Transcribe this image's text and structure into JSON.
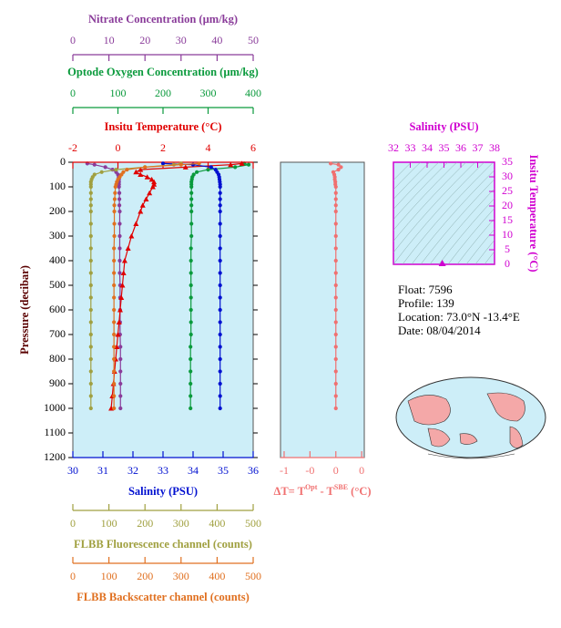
{
  "chart_data": [
    {
      "type": "profile",
      "y_label": "Pressure (decibar)",
      "ylim": [
        0,
        1200
      ],
      "yticks": [
        0,
        100,
        200,
        300,
        400,
        500,
        600,
        700,
        800,
        900,
        1000,
        1100,
        1200
      ],
      "background": "#cdeef8",
      "pressure": [
        5,
        10,
        20,
        30,
        40,
        50,
        60,
        70,
        80,
        90,
        100,
        125,
        150,
        175,
        200,
        250,
        300,
        350,
        400,
        450,
        500,
        550,
        600,
        650,
        700,
        750,
        800,
        850,
        900,
        950,
        1000
      ],
      "axes": [
        {
          "label": "Nitrate Concentration (µm/kg)",
          "side": "top",
          "color": "#8a3c9a",
          "marker": "circle",
          "xlim": [
            0,
            50
          ],
          "xticks": [
            0,
            10,
            20,
            30,
            40,
            50
          ],
          "values": [
            4,
            6,
            9,
            11,
            12,
            12.5,
            12.7,
            12.8,
            12.8,
            12.8,
            12.8,
            12.9,
            12.9,
            12.9,
            13,
            13,
            13,
            13,
            13,
            13,
            13.1,
            13.1,
            13.1,
            13.1,
            13.1,
            13.2,
            13.2,
            13.2,
            13.2,
            13.2,
            13.2
          ]
        },
        {
          "label": "Optode Oxygen Concentration (µm/kg)",
          "side": "top",
          "color": "#0a9a3c",
          "marker": "circle",
          "xlim": [
            0,
            400
          ],
          "xticks": [
            0,
            100,
            200,
            300,
            400
          ],
          "values": [
            380,
            390,
            360,
            300,
            275,
            268,
            265,
            264,
            263,
            263,
            263,
            263,
            263,
            263,
            263,
            263,
            263,
            262,
            262,
            262,
            262,
            262,
            262,
            262,
            262,
            261,
            261,
            261,
            261,
            261,
            261
          ]
        },
        {
          "label": "Insitu Temperature (°C)",
          "side": "top",
          "color": "#e00000",
          "marker": "triangle",
          "xlim": [
            -2,
            6
          ],
          "xticks": [
            -2,
            0,
            2,
            4,
            6
          ],
          "values": [
            5.5,
            5.0,
            3.0,
            1.0,
            0.8,
            1.0,
            1.3,
            1.5,
            1.6,
            1.6,
            1.55,
            1.4,
            1.25,
            1.1,
            1.0,
            0.8,
            0.6,
            0.45,
            0.3,
            0.25,
            0.2,
            0.15,
            0.1,
            0.05,
            0.0,
            -0.05,
            -0.1,
            -0.15,
            -0.2,
            -0.25,
            -0.3
          ]
        },
        {
          "label": "Salinity (PSU)",
          "side": "bottom",
          "color": "#0010d0",
          "marker": "circle",
          "xlim": [
            30,
            36
          ],
          "xticks": [
            30,
            31,
            32,
            33,
            34,
            35,
            36
          ],
          "values": [
            33.0,
            34.0,
            34.6,
            34.75,
            34.8,
            34.85,
            34.87,
            34.88,
            34.89,
            34.9,
            34.9,
            34.9,
            34.9,
            34.9,
            34.9,
            34.9,
            34.9,
            34.9,
            34.9,
            34.9,
            34.9,
            34.9,
            34.9,
            34.9,
            34.9,
            34.9,
            34.9,
            34.9,
            34.9,
            34.9,
            34.9
          ]
        },
        {
          "label": "FLBB Fluorescence channel (counts)",
          "side": "bottom",
          "color": "#a0a040",
          "marker": "circle",
          "xlim": [
            0,
            500
          ],
          "xticks": [
            0,
            100,
            200,
            300,
            400,
            500
          ],
          "values": [
            300,
            280,
            200,
            120,
            80,
            60,
            55,
            52,
            50,
            50,
            50,
            50,
            50,
            50,
            50,
            50,
            50,
            50,
            50,
            50,
            50,
            50,
            50,
            50,
            50,
            50,
            50,
            50,
            50,
            50,
            50
          ]
        },
        {
          "label": "FLBB Backscatter channel (counts)",
          "side": "bottom",
          "color": "#e07020",
          "marker": "circle",
          "xlim": [
            0,
            500
          ],
          "xticks": [
            0,
            100,
            200,
            300,
            400,
            500
          ],
          "values": [
            350,
            300,
            200,
            150,
            140,
            135,
            130,
            125,
            122,
            120,
            118,
            117,
            116,
            115,
            115,
            115,
            115,
            114,
            114,
            114,
            114,
            114,
            114,
            114,
            114,
            114,
            114,
            114,
            114,
            114,
            114
          ]
        }
      ]
    },
    {
      "type": "profile",
      "ylim": [
        0,
        1200
      ],
      "background": "#cdeef8",
      "pressure": [
        5,
        10,
        20,
        30,
        40,
        50,
        60,
        70,
        80,
        90,
        100,
        125,
        150,
        175,
        200,
        250,
        300,
        350,
        400,
        450,
        500,
        550,
        600,
        650,
        700,
        750,
        800,
        850,
        900,
        950,
        1000
      ],
      "axes": [
        {
          "label_parts": [
            "ΔT= T",
            "Opt",
            " - T",
            "SBE",
            " (°C)"
          ],
          "side": "bottom",
          "color": "#f07070",
          "marker": "circle",
          "xlim": [
            -1.07,
            0.55
          ],
          "xticks": [
            {
              "value": -1,
              "label": "-1"
            },
            {
              "value": -0.5,
              "label": "-0"
            },
            0,
            {
              "value": 0.5,
              "label": "0"
            }
          ],
          "values": [
            -0.1,
            0.05,
            0.1,
            0.05,
            -0.05,
            -0.03,
            -0.02,
            -0.02,
            -0.01,
            -0.01,
            0,
            0,
            0,
            0,
            0,
            0,
            0,
            0,
            0,
            0,
            0,
            0,
            0,
            0,
            0,
            0,
            0,
            0,
            0,
            0,
            0
          ]
        }
      ]
    },
    {
      "type": "ts",
      "x_label": "Salinity (PSU)",
      "y_label": "Insitu Temperature (°C)",
      "color": "#d000d0",
      "xlim": [
        32,
        38
      ],
      "xticks": [
        32,
        33,
        34,
        35,
        36,
        37,
        38
      ],
      "ylim": [
        0,
        35
      ],
      "yticks": [
        0,
        5,
        10,
        15,
        20,
        25,
        30,
        35
      ],
      "x": [
        34.9
      ],
      "values": [
        0.3
      ]
    }
  ],
  "info": {
    "lines": [
      "Float:  7596",
      "Profile:  139",
      "Location:  73.0°N  -13.4°E",
      "Date:  08/04/2014"
    ]
  }
}
